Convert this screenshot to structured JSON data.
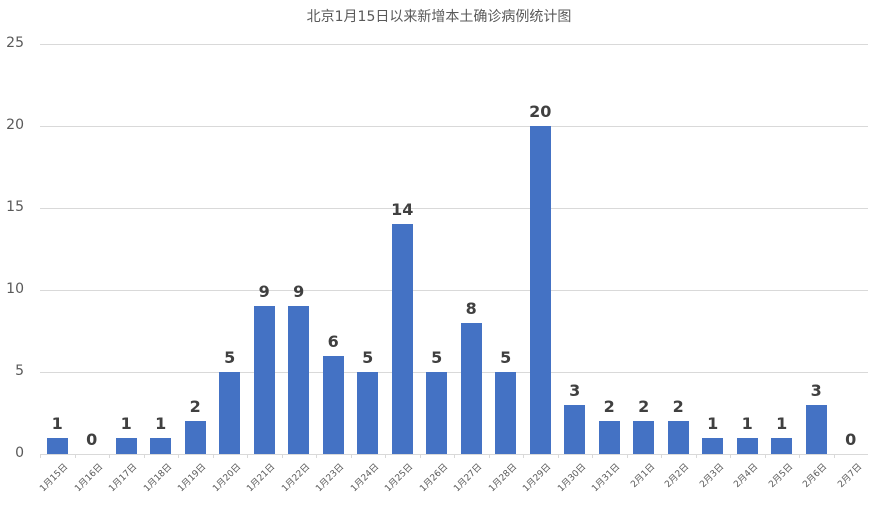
{
  "chart_data": {
    "type": "bar",
    "title": "北京1月15日以来新增本土确诊病例统计图",
    "xlabel": "",
    "ylabel": "",
    "ylim": [
      0,
      25
    ],
    "yticks": [
      0,
      5,
      10,
      15,
      20,
      25
    ],
    "grid": true,
    "legend": null,
    "bar_color": "#4472C4",
    "categories": [
      "1月15日",
      "1月16日",
      "1月17日",
      "1月18日",
      "1月19日",
      "1月20日",
      "1月21日",
      "1月22日",
      "1月23日",
      "1月24日",
      "1月25日",
      "1月26日",
      "1月27日",
      "1月28日",
      "1月29日",
      "1月30日",
      "1月31日",
      "2月1日",
      "2月2日",
      "2月3日",
      "2月4日",
      "2月5日",
      "2月6日",
      "2月7日"
    ],
    "values": [
      1,
      0,
      1,
      1,
      2,
      5,
      9,
      9,
      6,
      5,
      14,
      5,
      8,
      5,
      20,
      3,
      2,
      2,
      2,
      1,
      1,
      1,
      3,
      0
    ]
  }
}
